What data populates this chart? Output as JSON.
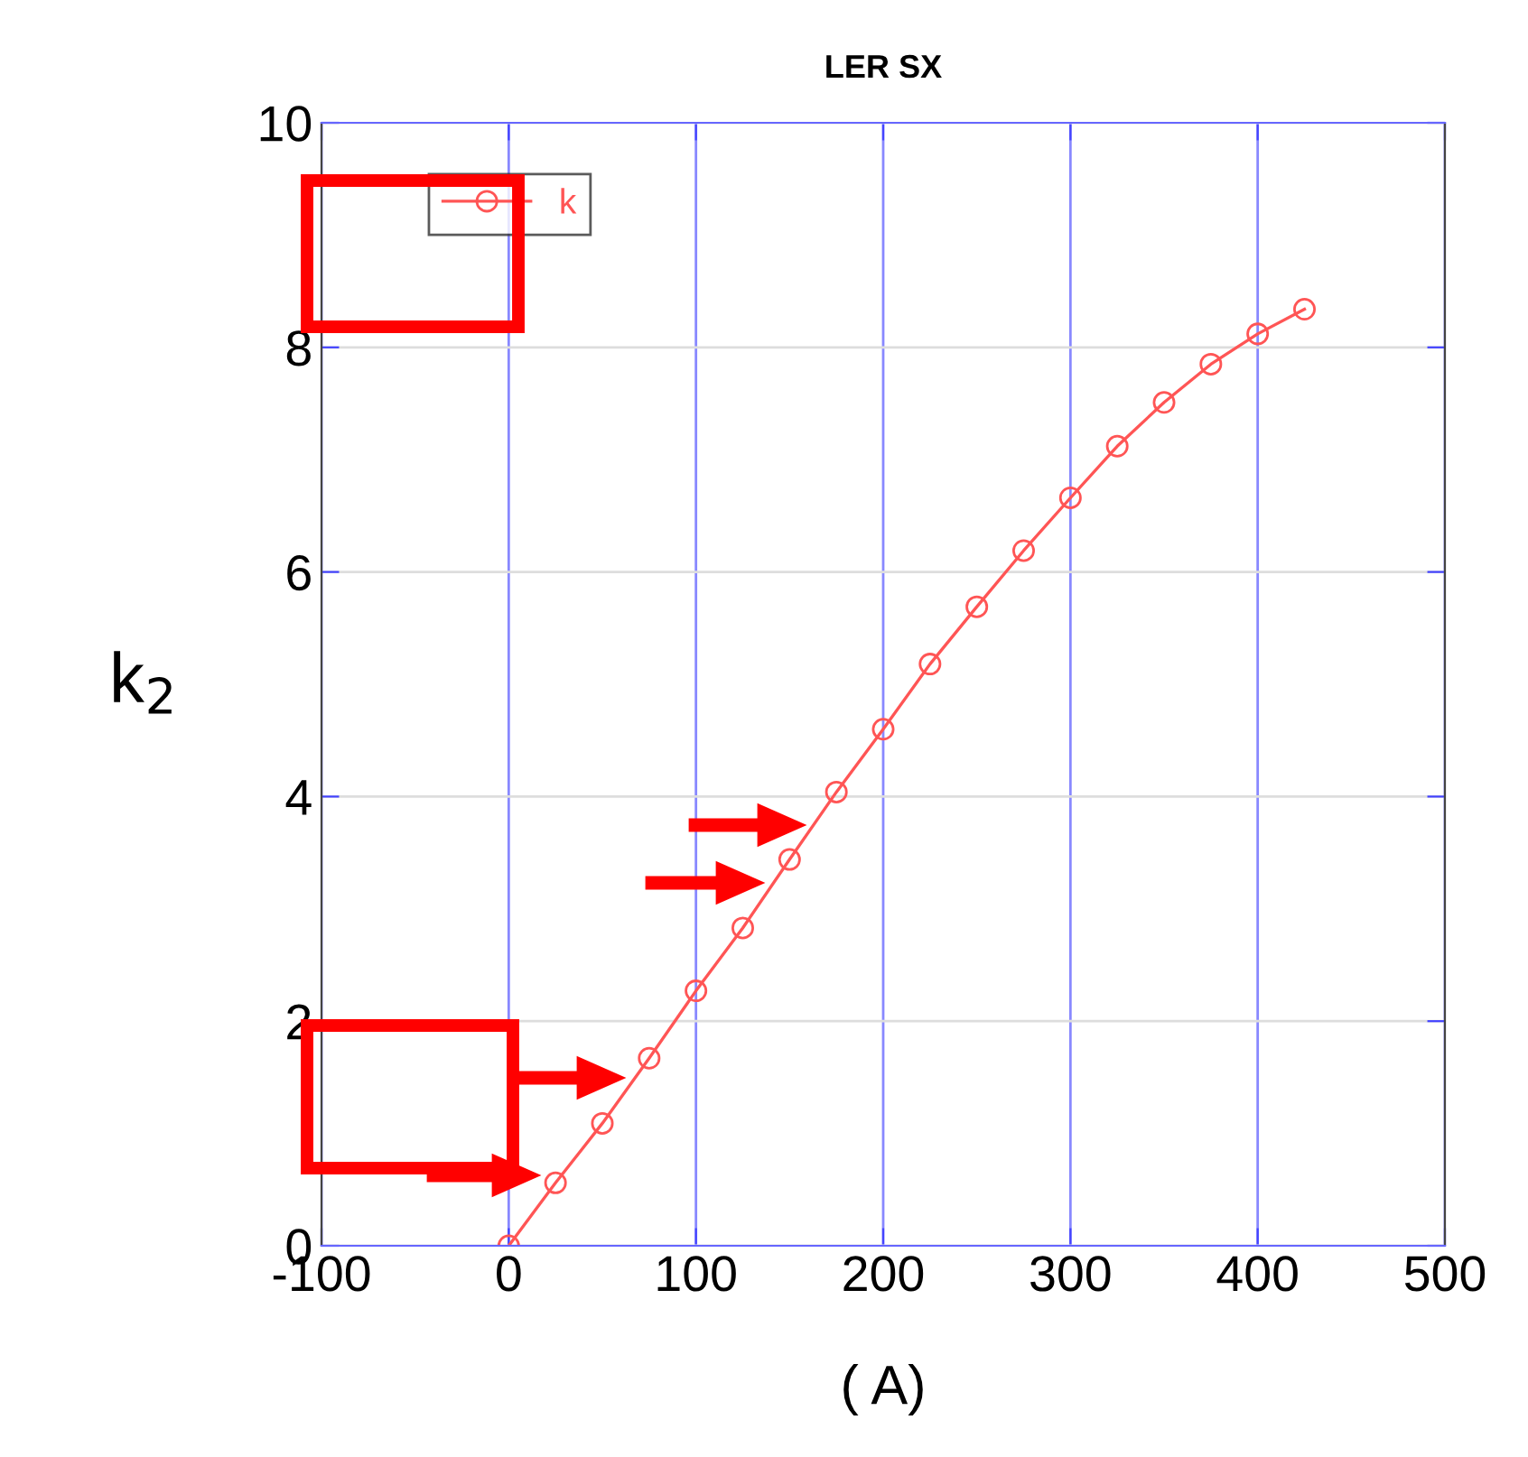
{
  "chart_data": {
    "type": "line",
    "title": "LER SX",
    "xlabel": "( A)",
    "ylabel": "k$_{2}$",
    "x": [
      0,
      25,
      50,
      75,
      100,
      125,
      150,
      175,
      200,
      225,
      250,
      275,
      300,
      325,
      350,
      375,
      400,
      425
    ],
    "series": [
      {
        "name": "k",
        "color": "#ff5555",
        "values": [
          0,
          0.56,
          1.09,
          1.67,
          2.27,
          2.83,
          3.44,
          4.04,
          4.6,
          5.18,
          5.69,
          6.19,
          6.66,
          7.12,
          7.51,
          7.85,
          8.12,
          8.34
        ]
      }
    ],
    "xlim": [
      -100,
      500
    ],
    "xticks": [
      -100,
      0,
      100,
      200,
      300,
      400,
      500
    ],
    "ylim": [
      0,
      10
    ],
    "yticks": [
      0,
      2,
      4,
      6,
      8,
      10
    ],
    "grid": true,
    "legend": "top left",
    "marker": "circle",
    "line_style": "solid"
  }
}
